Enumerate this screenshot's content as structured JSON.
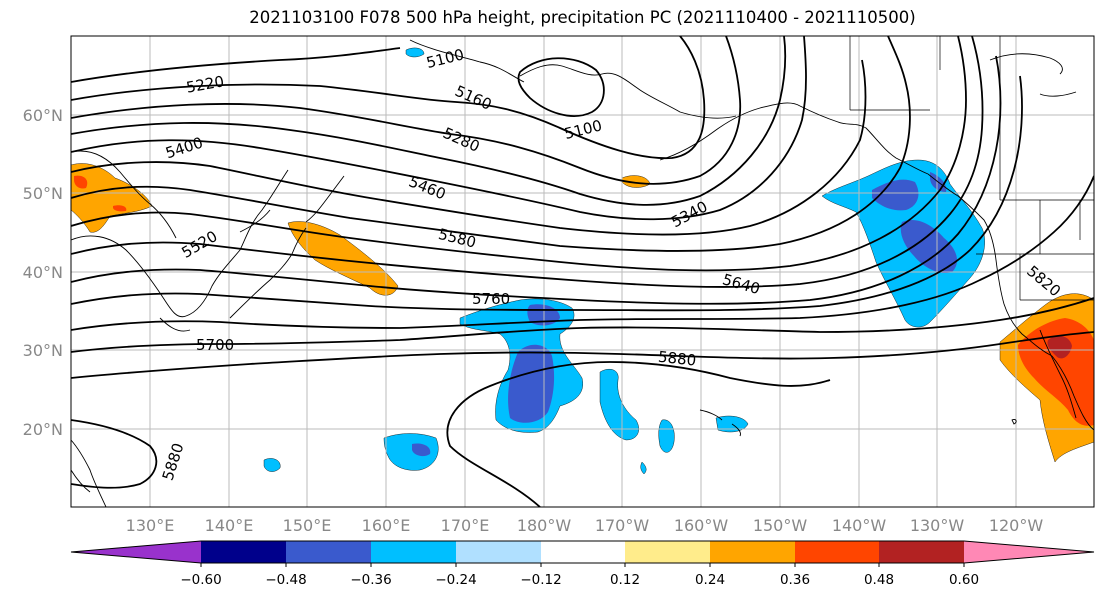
{
  "title": "2021103100 F078 500 hPa height, precipitation PC (2021110400 - 2021110500)",
  "lat_ticks": [
    "60°N",
    "50°N",
    "40°N",
    "30°N",
    "20°N"
  ],
  "lon_ticks": [
    "130°E",
    "140°E",
    "150°E",
    "160°E",
    "170°E",
    "180°W",
    "170°W",
    "160°W",
    "150°W",
    "140°W",
    "130°W",
    "120°W"
  ],
  "colorbar": {
    "colors": [
      "#9932cc",
      "#00008b",
      "#3a5acd",
      "#00bfff",
      "#b0e0ff",
      "#ffffff",
      "#ffec8b",
      "#ffa500",
      "#ff4500",
      "#b22222",
      "#ff88b5"
    ],
    "labels": [
      "−0.60",
      "−0.48",
      "−0.36",
      "−0.24",
      "−0.12",
      "0.12",
      "0.24",
      "0.36",
      "0.48",
      "0.60"
    ]
  },
  "contour_labels": [
    "5100",
    "5100",
    "5160",
    "5220",
    "5280",
    "5340",
    "5400",
    "5460",
    "5520",
    "5580",
    "5640",
    "5700",
    "5760",
    "5820",
    "5880",
    "5880"
  ]
}
